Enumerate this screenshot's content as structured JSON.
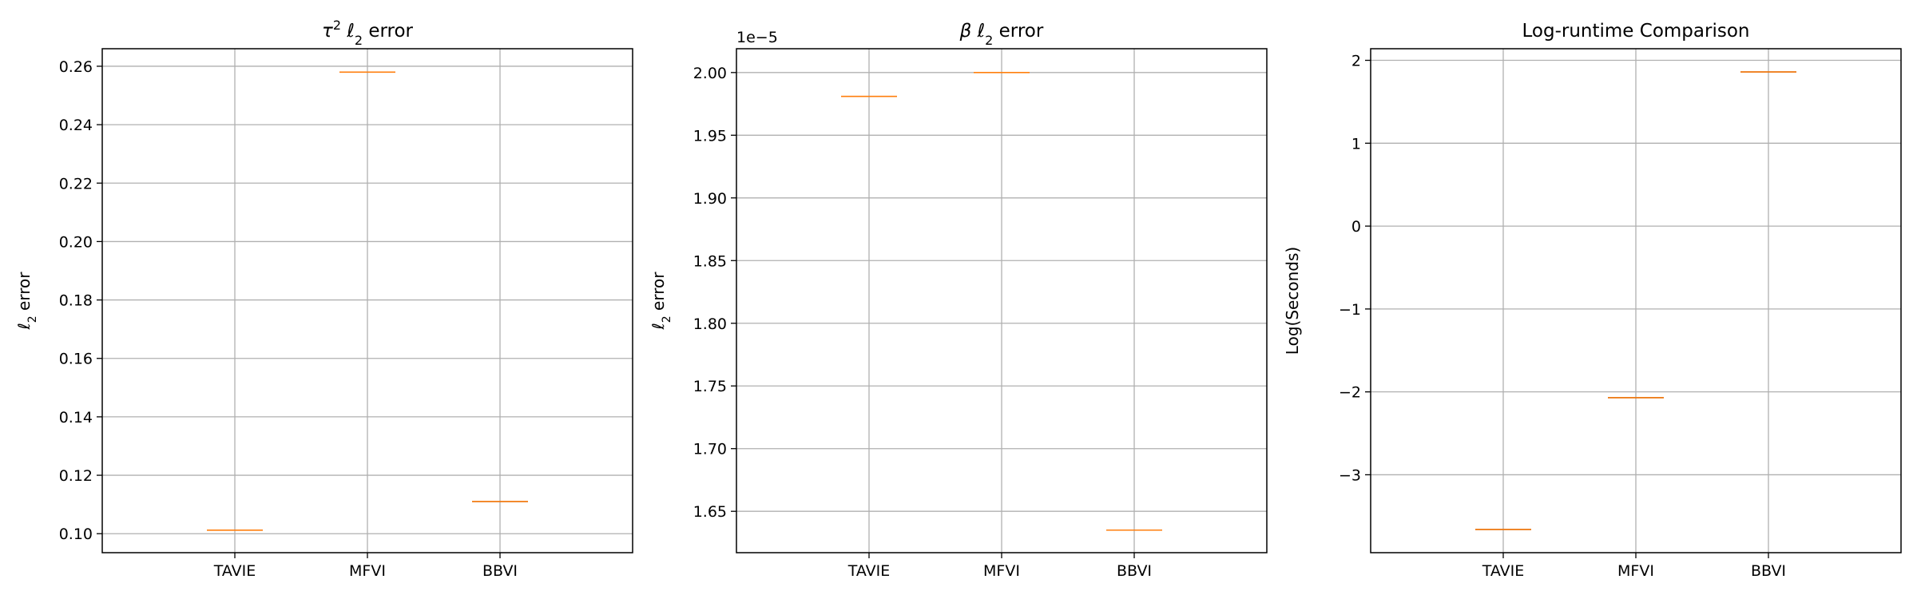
{
  "chart_data": [
    {
      "type": "box",
      "title": "τ² ℓ₂ error",
      "title_parts": [
        "τ",
        "2",
        " ℓ",
        "2",
        " error"
      ],
      "xlabel": "",
      "ylabel": "ℓ₂ error",
      "ylabel_parts": [
        "ℓ",
        "2",
        " error"
      ],
      "categories": [
        "TAVIE",
        "MFVI",
        "BBVI"
      ],
      "values": [
        0.1012,
        0.258,
        0.111
      ],
      "ylim": [
        0.0935,
        0.266
      ],
      "yticks": [
        0.1,
        0.12,
        0.14,
        0.16,
        0.18,
        0.2,
        0.22,
        0.24,
        0.26
      ],
      "ytick_labels": [
        "0.10",
        "0.12",
        "0.14",
        "0.16",
        "0.18",
        "0.20",
        "0.22",
        "0.24",
        "0.26"
      ],
      "offset_text": "",
      "grid": true
    },
    {
      "type": "box",
      "title": "β ℓ₂ error",
      "title_parts": [
        "β",
        "",
        " ℓ",
        "2",
        " error"
      ],
      "xlabel": "",
      "ylabel": "ℓ₂ error",
      "ylabel_parts": [
        "ℓ",
        "2",
        " error"
      ],
      "categories": [
        "TAVIE",
        "MFVI",
        "BBVI"
      ],
      "values": [
        1.981,
        2.0,
        1.635
      ],
      "ylim": [
        1.617,
        2.019
      ],
      "yticks": [
        1.65,
        1.7,
        1.75,
        1.8,
        1.85,
        1.9,
        1.95,
        2.0
      ],
      "ytick_labels": [
        "1.65",
        "1.70",
        "1.75",
        "1.80",
        "1.85",
        "1.90",
        "1.95",
        "2.00"
      ],
      "offset_text": "1e−5",
      "grid": true
    },
    {
      "type": "box",
      "title": "Log-runtime Comparison",
      "title_parts": [
        "Log-runtime Comparison",
        "",
        "",
        "",
        ""
      ],
      "xlabel": "",
      "ylabel": "Log(Seconds)",
      "ylabel_parts": [
        "Log(Seconds)",
        "",
        ""
      ],
      "categories": [
        "TAVIE",
        "MFVI",
        "BBVI"
      ],
      "values": [
        -3.66,
        -2.07,
        1.86
      ],
      "ylim": [
        -3.94,
        2.14
      ],
      "yticks": [
        -3,
        -2,
        -1,
        0,
        1,
        2
      ],
      "ytick_labels": [
        "−3",
        "−2",
        "−1",
        "0",
        "1",
        "2"
      ],
      "offset_text": "",
      "grid": true
    }
  ],
  "colors": {
    "median_line": "#ff7f0e",
    "box_edge": "#000000",
    "grid": "#b0b0b0",
    "axes_frame": "#000000",
    "background": "#ffffff"
  }
}
